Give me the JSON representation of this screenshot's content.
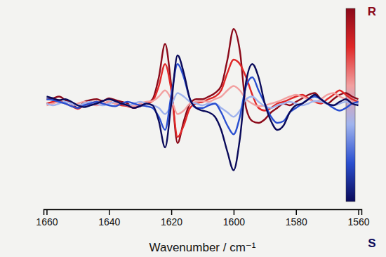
{
  "chart_data": {
    "type": "line",
    "xlabel": "Wavenumber / cm⁻¹",
    "annotations": [
      {
        "text": "R"
      },
      {
        "text": "S"
      }
    ],
    "x": [
      1660,
      1658,
      1656,
      1654,
      1652,
      1650,
      1648,
      1646,
      1644,
      1642,
      1640,
      1638,
      1636,
      1634,
      1632,
      1630,
      1628,
      1626,
      1624,
      1622,
      1620,
      1618,
      1616,
      1614,
      1612,
      1610,
      1608,
      1606,
      1604,
      1602,
      1600,
      1598,
      1596,
      1594,
      1592,
      1590,
      1588,
      1586,
      1584,
      1582,
      1580,
      1578,
      1576,
      1574,
      1572,
      1570,
      1568,
      1566,
      1564,
      1562,
      1560
    ],
    "series": [
      {
        "color": "#8b0a1a",
        "values": [
          0.05,
          0.06,
          0.08,
          0.04,
          0.0,
          -0.05,
          0.02,
          0.04,
          0.05,
          0.03,
          0.06,
          0.04,
          0.02,
          0.0,
          -0.05,
          -0.02,
          0.0,
          0.05,
          0.3,
          0.68,
          0.2,
          -0.45,
          -0.2,
          0.0,
          0.05,
          0.05,
          0.08,
          0.12,
          0.2,
          0.5,
          0.85,
          0.6,
          -0.05,
          -0.2,
          -0.22,
          -0.18,
          -0.1,
          -0.05,
          0.0,
          -0.02,
          0.02,
          0.06,
          0.1,
          0.12,
          0.05,
          0.0,
          0.05,
          0.1,
          0.12,
          0.08,
          0.05
        ]
      },
      {
        "color": "#e02828",
        "values": [
          0.0,
          0.02,
          0.03,
          0.0,
          -0.03,
          -0.06,
          -0.02,
          0.0,
          0.02,
          0.0,
          0.02,
          0.0,
          -0.02,
          -0.03,
          -0.05,
          -0.03,
          0.0,
          0.03,
          0.2,
          0.45,
          0.15,
          -0.38,
          -0.25,
          -0.05,
          0.0,
          0.02,
          0.05,
          0.08,
          0.15,
          0.35,
          0.5,
          0.45,
          0.3,
          0.1,
          -0.05,
          -0.08,
          -0.05,
          0.0,
          0.02,
          0.05,
          0.08,
          0.1,
          0.06,
          0.02,
          0.0,
          0.05,
          0.1,
          0.15,
          0.1,
          0.05,
          0.02
        ]
      },
      {
        "color": "#f2a0a0",
        "values": [
          -0.02,
          0.0,
          0.02,
          0.0,
          -0.02,
          0.0,
          0.02,
          0.0,
          -0.02,
          0.0,
          0.02,
          0.0,
          0.0,
          -0.02,
          -0.03,
          0.0,
          0.02,
          0.03,
          0.08,
          0.15,
          0.05,
          -0.12,
          -0.08,
          0.0,
          0.02,
          0.03,
          0.02,
          0.05,
          0.08,
          0.15,
          0.2,
          0.15,
          0.05,
          0.0,
          -0.03,
          -0.02,
          0.0,
          0.02,
          0.05,
          0.08,
          0.1,
          0.08,
          0.05,
          0.02,
          0.05,
          0.1,
          0.12,
          0.08,
          0.05,
          0.02,
          0.0
        ]
      },
      {
        "color": "#a0b4ee",
        "values": [
          0.0,
          -0.02,
          0.0,
          0.02,
          0.0,
          -0.02,
          0.0,
          0.02,
          0.0,
          -0.02,
          0.0,
          0.02,
          0.0,
          -0.02,
          0.0,
          0.02,
          0.0,
          -0.02,
          -0.05,
          -0.12,
          -0.02,
          0.12,
          0.08,
          0.02,
          0.0,
          -0.02,
          0.0,
          0.0,
          -0.05,
          -0.1,
          -0.15,
          -0.08,
          0.05,
          0.08,
          0.02,
          -0.03,
          -0.05,
          -0.02,
          0.0,
          0.02,
          0.0,
          -0.02,
          0.0,
          0.03,
          0.02,
          0.0,
          -0.02,
          0.0,
          0.02,
          0.0,
          0.0
        ]
      },
      {
        "color": "#2a4fd0",
        "values": [
          0.05,
          0.04,
          0.02,
          0.0,
          -0.03,
          -0.05,
          -0.02,
          0.0,
          0.02,
          0.0,
          -0.02,
          -0.03,
          0.0,
          0.02,
          0.0,
          -0.02,
          -0.03,
          -0.05,
          -0.15,
          -0.3,
          0.1,
          0.45,
          0.3,
          0.05,
          -0.05,
          -0.05,
          -0.02,
          0.0,
          -0.1,
          -0.25,
          -0.35,
          -0.15,
          0.2,
          0.3,
          0.15,
          0.0,
          -0.15,
          -0.22,
          -0.2,
          -0.1,
          -0.05,
          0.0,
          0.05,
          0.08,
          0.05,
          0.0,
          -0.05,
          -0.08,
          -0.05,
          0.0,
          0.02
        ]
      },
      {
        "color": "#0a0a5a",
        "values": [
          0.08,
          0.06,
          0.04,
          0.05,
          0.02,
          -0.02,
          -0.04,
          -0.02,
          0.0,
          0.03,
          0.05,
          0.03,
          0.0,
          -0.02,
          -0.05,
          -0.03,
          0.0,
          -0.02,
          -0.2,
          -0.5,
          0.0,
          0.55,
          0.35,
          0.05,
          -0.05,
          -0.08,
          -0.1,
          -0.15,
          -0.3,
          -0.55,
          -0.76,
          -0.4,
          0.25,
          0.45,
          0.3,
          0.0,
          -0.2,
          -0.3,
          -0.25,
          -0.1,
          -0.02,
          0.0,
          0.05,
          0.1,
          0.05,
          0.0,
          -0.02,
          0.02,
          0.05,
          0.0,
          -0.02
        ]
      }
    ],
    "xlim": [
      1661,
      1559
    ],
    "xticks": [
      1660,
      1640,
      1620,
      1600,
      1580,
      1560
    ],
    "ylim": [
      -1.1,
      1.1
    ],
    "tick_labels": "x",
    "grid": false
  }
}
